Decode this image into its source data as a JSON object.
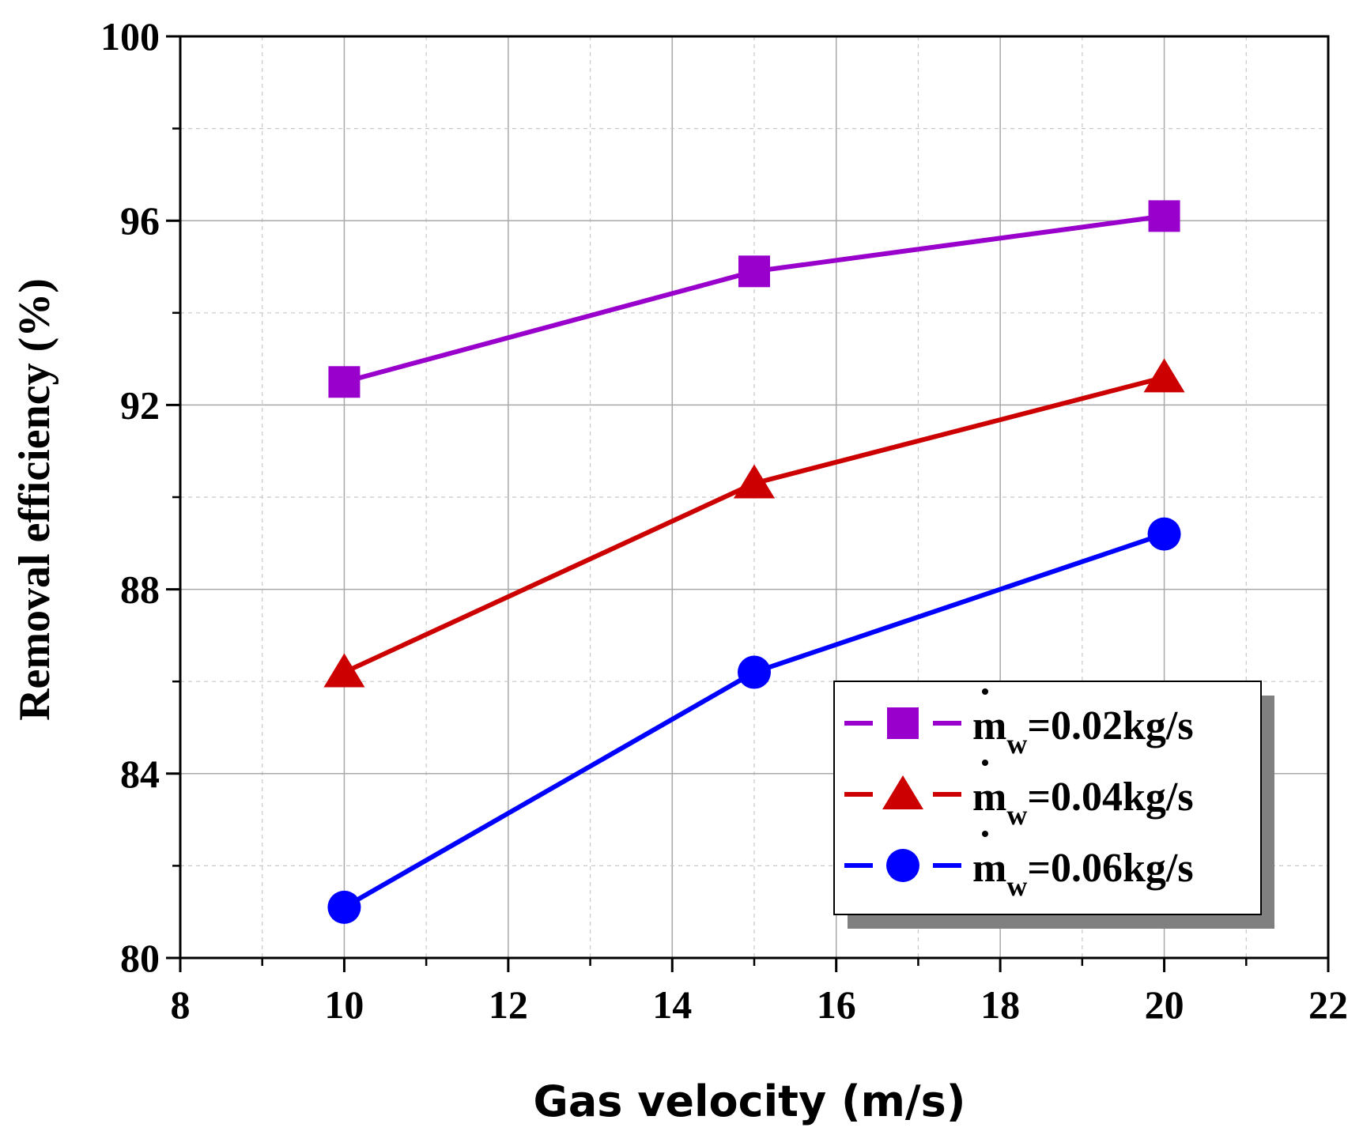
{
  "chart_data": {
    "type": "line",
    "title": "",
    "xlabel": "Gas velocity (m/s)",
    "ylabel": "Removal efficiency  (%)",
    "xlim": [
      8,
      22
    ],
    "ylim": [
      80,
      100
    ],
    "x_ticks": [
      8,
      10,
      12,
      14,
      16,
      18,
      20,
      22
    ],
    "x_tick_labels": [
      "8",
      "10",
      "12",
      "14",
      "16",
      "18",
      "20",
      "22"
    ],
    "y_ticks": [
      80,
      84,
      88,
      92,
      96,
      100
    ],
    "y_tick_labels": [
      "80",
      "84",
      "88",
      "92",
      "96",
      "100"
    ],
    "grid": true,
    "legend_position": "bottom-right",
    "x": [
      10,
      15,
      20
    ],
    "series": [
      {
        "name": "m",
        "sub": "w",
        "suffix": "=0.02kg/s",
        "marker": "square",
        "color": "#9900cc",
        "values": [
          92.5,
          94.9,
          96.1
        ]
      },
      {
        "name": "m",
        "sub": "w",
        "suffix": "=0.04kg/s",
        "marker": "triangle",
        "color": "#cc0000",
        "values": [
          86.2,
          90.3,
          92.6
        ]
      },
      {
        "name": "m",
        "sub": "w",
        "suffix": "=0.06kg/s",
        "marker": "circle",
        "color": "#0000ff",
        "values": [
          81.1,
          86.2,
          89.2
        ]
      }
    ]
  }
}
